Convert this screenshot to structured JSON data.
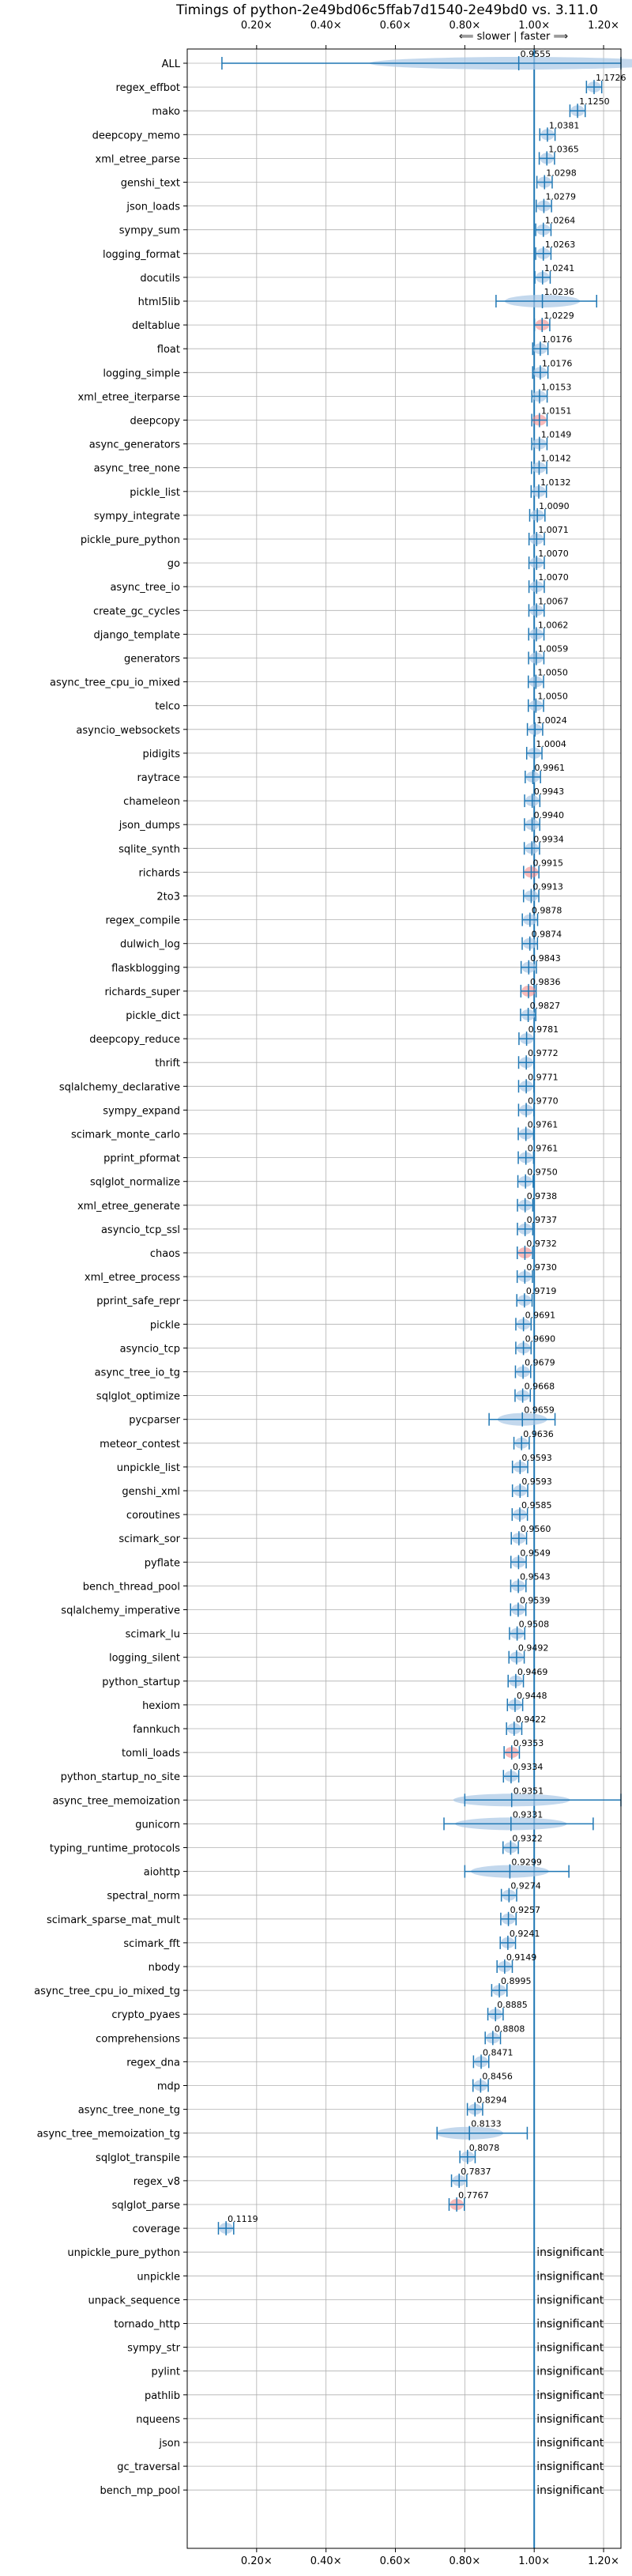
{
  "chart_data": {
    "type": "violin",
    "title": "Timings of python-2e49bd06c5ffab7d1540-2e49bd0 vs. 3.11.0",
    "direction_note": "⟸ slower | faster ⟹",
    "xlim": [
      0.0,
      1.25
    ],
    "xticks": [
      0.2,
      0.4,
      0.6,
      0.8,
      1.0,
      1.2
    ],
    "xtick_labels": [
      "0.20×",
      "0.40×",
      "0.60×",
      "0.80×",
      "1.00×",
      "1.20×"
    ],
    "reference_line": 1.0,
    "grid": true,
    "insignificant_label": "insignificant",
    "colors": {
      "primary": "#1f77b4",
      "violin": "#aac8e6",
      "highlight": "#f08080",
      "grid": "#b0b0b0"
    },
    "benchmarks": [
      {
        "name": "ALL",
        "value": 0.9555,
        "label": "0.9555",
        "min": 0.1,
        "max": 1.25
      },
      {
        "name": "regex_effbot",
        "value": 1.1726,
        "label": "1.1726"
      },
      {
        "name": "mako",
        "value": 1.125,
        "label": "1.1250"
      },
      {
        "name": "deepcopy_memo",
        "value": 1.0381,
        "label": "1.0381"
      },
      {
        "name": "xml_etree_parse",
        "value": 1.0365,
        "label": "1.0365"
      },
      {
        "name": "genshi_text",
        "value": 1.0298,
        "label": "1.0298"
      },
      {
        "name": "json_loads",
        "value": 1.0279,
        "label": "1.0279"
      },
      {
        "name": "sympy_sum",
        "value": 1.0264,
        "label": "1.0264"
      },
      {
        "name": "logging_format",
        "value": 1.0263,
        "label": "1.0263"
      },
      {
        "name": "docutils",
        "value": 1.0241,
        "label": "1.0241"
      },
      {
        "name": "html5lib",
        "value": 1.0236,
        "label": "1.0236",
        "min": 0.89,
        "max": 1.18
      },
      {
        "name": "deltablue",
        "value": 1.0229,
        "label": "1.0229",
        "highlight": true
      },
      {
        "name": "float",
        "value": 1.0176,
        "label": "1.0176"
      },
      {
        "name": "logging_simple",
        "value": 1.0176,
        "label": "1.0176"
      },
      {
        "name": "xml_etree_iterparse",
        "value": 1.0153,
        "label": "1.0153"
      },
      {
        "name": "deepcopy",
        "value": 1.0151,
        "label": "1.0151",
        "highlight": true
      },
      {
        "name": "async_generators",
        "value": 1.0149,
        "label": "1.0149"
      },
      {
        "name": "async_tree_none",
        "value": 1.0142,
        "label": "1.0142"
      },
      {
        "name": "pickle_list",
        "value": 1.0132,
        "label": "1.0132"
      },
      {
        "name": "sympy_integrate",
        "value": 1.009,
        "label": "1.0090"
      },
      {
        "name": "pickle_pure_python",
        "value": 1.0071,
        "label": "1.0071"
      },
      {
        "name": "go",
        "value": 1.007,
        "label": "1.0070"
      },
      {
        "name": "async_tree_io",
        "value": 1.007,
        "label": "1.0070"
      },
      {
        "name": "create_gc_cycles",
        "value": 1.0067,
        "label": "1.0067"
      },
      {
        "name": "django_template",
        "value": 1.0062,
        "label": "1.0062"
      },
      {
        "name": "generators",
        "value": 1.0059,
        "label": "1.0059"
      },
      {
        "name": "async_tree_cpu_io_mixed",
        "value": 1.005,
        "label": "1.0050"
      },
      {
        "name": "telco",
        "value": 1.005,
        "label": "1.0050"
      },
      {
        "name": "asyncio_websockets",
        "value": 1.0024,
        "label": "1.0024"
      },
      {
        "name": "pidigits",
        "value": 1.0004,
        "label": "1.0004"
      },
      {
        "name": "raytrace",
        "value": 0.9961,
        "label": "0.9961"
      },
      {
        "name": "chameleon",
        "value": 0.9943,
        "label": "0.9943"
      },
      {
        "name": "json_dumps",
        "value": 0.994,
        "label": "0.9940"
      },
      {
        "name": "sqlite_synth",
        "value": 0.9934,
        "label": "0.9934"
      },
      {
        "name": "richards",
        "value": 0.9915,
        "label": "0.9915",
        "highlight": true
      },
      {
        "name": "2to3",
        "value": 0.9913,
        "label": "0.9913"
      },
      {
        "name": "regex_compile",
        "value": 0.9878,
        "label": "0.9878"
      },
      {
        "name": "dulwich_log",
        "value": 0.9874,
        "label": "0.9874"
      },
      {
        "name": "flaskblogging",
        "value": 0.9843,
        "label": "0.9843"
      },
      {
        "name": "richards_super",
        "value": 0.9836,
        "label": "0.9836",
        "highlight": true
      },
      {
        "name": "pickle_dict",
        "value": 0.9827,
        "label": "0.9827"
      },
      {
        "name": "deepcopy_reduce",
        "value": 0.9781,
        "label": "0.9781"
      },
      {
        "name": "thrift",
        "value": 0.9772,
        "label": "0.9772"
      },
      {
        "name": "sqlalchemy_declarative",
        "value": 0.9771,
        "label": "0.9771"
      },
      {
        "name": "sympy_expand",
        "value": 0.977,
        "label": "0.9770"
      },
      {
        "name": "scimark_monte_carlo",
        "value": 0.9761,
        "label": "0.9761"
      },
      {
        "name": "pprint_pformat",
        "value": 0.9761,
        "label": "0.9761"
      },
      {
        "name": "sqlglot_normalize",
        "value": 0.975,
        "label": "0.9750"
      },
      {
        "name": "xml_etree_generate",
        "value": 0.9738,
        "label": "0.9738"
      },
      {
        "name": "asyncio_tcp_ssl",
        "value": 0.9737,
        "label": "0.9737"
      },
      {
        "name": "chaos",
        "value": 0.9732,
        "label": "0.9732",
        "highlight": true
      },
      {
        "name": "xml_etree_process",
        "value": 0.973,
        "label": "0.9730"
      },
      {
        "name": "pprint_safe_repr",
        "value": 0.9719,
        "label": "0.9719"
      },
      {
        "name": "pickle",
        "value": 0.9691,
        "label": "0.9691"
      },
      {
        "name": "asyncio_tcp",
        "value": 0.969,
        "label": "0.9690"
      },
      {
        "name": "async_tree_io_tg",
        "value": 0.9679,
        "label": "0.9679"
      },
      {
        "name": "sqlglot_optimize",
        "value": 0.9668,
        "label": "0.9668"
      },
      {
        "name": "pycparser",
        "value": 0.9659,
        "label": "0.9659",
        "min": 0.87,
        "max": 1.06
      },
      {
        "name": "meteor_contest",
        "value": 0.9636,
        "label": "0.9636"
      },
      {
        "name": "unpickle_list",
        "value": 0.9593,
        "label": "0.9593"
      },
      {
        "name": "genshi_xml",
        "value": 0.9593,
        "label": "0.9593"
      },
      {
        "name": "coroutines",
        "value": 0.9585,
        "label": "0.9585"
      },
      {
        "name": "scimark_sor",
        "value": 0.956,
        "label": "0.9560"
      },
      {
        "name": "pyflate",
        "value": 0.9549,
        "label": "0.9549"
      },
      {
        "name": "bench_thread_pool",
        "value": 0.9543,
        "label": "0.9543"
      },
      {
        "name": "sqlalchemy_imperative",
        "value": 0.9539,
        "label": "0.9539"
      },
      {
        "name": "scimark_lu",
        "value": 0.9508,
        "label": "0.9508"
      },
      {
        "name": "logging_silent",
        "value": 0.9492,
        "label": "0.9492"
      },
      {
        "name": "python_startup",
        "value": 0.9469,
        "label": "0.9469"
      },
      {
        "name": "hexiom",
        "value": 0.9448,
        "label": "0.9448"
      },
      {
        "name": "fannkuch",
        "value": 0.9422,
        "label": "0.9422"
      },
      {
        "name": "tomli_loads",
        "value": 0.9353,
        "label": "0.9353",
        "highlight": true
      },
      {
        "name": "python_startup_no_site",
        "value": 0.9334,
        "label": "0.9334"
      },
      {
        "name": "async_tree_memoization",
        "value": 0.9351,
        "label": "0.9351",
        "min": 0.8,
        "max": 1.25
      },
      {
        "name": "gunicorn",
        "value": 0.9331,
        "label": "0.9331",
        "min": 0.74,
        "max": 1.17
      },
      {
        "name": "typing_runtime_protocols",
        "value": 0.9322,
        "label": "0.9322"
      },
      {
        "name": "aiohttp",
        "value": 0.9299,
        "label": "0.9299",
        "min": 0.8,
        "max": 1.1
      },
      {
        "name": "spectral_norm",
        "value": 0.9274,
        "label": "0.9274"
      },
      {
        "name": "scimark_sparse_mat_mult",
        "value": 0.9257,
        "label": "0.9257"
      },
      {
        "name": "scimark_fft",
        "value": 0.9241,
        "label": "0.9241"
      },
      {
        "name": "nbody",
        "value": 0.9149,
        "label": "0.9149"
      },
      {
        "name": "async_tree_cpu_io_mixed_tg",
        "value": 0.8995,
        "label": "0.8995"
      },
      {
        "name": "crypto_pyaes",
        "value": 0.8885,
        "label": "0.8885"
      },
      {
        "name": "comprehensions",
        "value": 0.8808,
        "label": "0.8808"
      },
      {
        "name": "regex_dna",
        "value": 0.8471,
        "label": "0.8471"
      },
      {
        "name": "mdp",
        "value": 0.8456,
        "label": "0.8456"
      },
      {
        "name": "async_tree_none_tg",
        "value": 0.8294,
        "label": "0.8294"
      },
      {
        "name": "async_tree_memoization_tg",
        "value": 0.8133,
        "label": "0.8133",
        "min": 0.72,
        "max": 0.98
      },
      {
        "name": "sqlglot_transpile",
        "value": 0.8078,
        "label": "0.8078"
      },
      {
        "name": "regex_v8",
        "value": 0.7837,
        "label": "0.7837"
      },
      {
        "name": "sqlglot_parse",
        "value": 0.7767,
        "label": "0.7767",
        "highlight": true
      },
      {
        "name": "coverage",
        "value": 0.1119,
        "label": "0.1119"
      },
      {
        "name": "unpickle_pure_python",
        "insignificant": true
      },
      {
        "name": "unpickle",
        "insignificant": true
      },
      {
        "name": "unpack_sequence",
        "insignificant": true
      },
      {
        "name": "tornado_http",
        "insignificant": true
      },
      {
        "name": "sympy_str",
        "insignificant": true
      },
      {
        "name": "pylint",
        "insignificant": true
      },
      {
        "name": "pathlib",
        "insignificant": true
      },
      {
        "name": "nqueens",
        "insignificant": true
      },
      {
        "name": "json",
        "insignificant": true
      },
      {
        "name": "gc_traversal",
        "insignificant": true
      },
      {
        "name": "bench_mp_pool",
        "insignificant": true
      }
    ]
  }
}
